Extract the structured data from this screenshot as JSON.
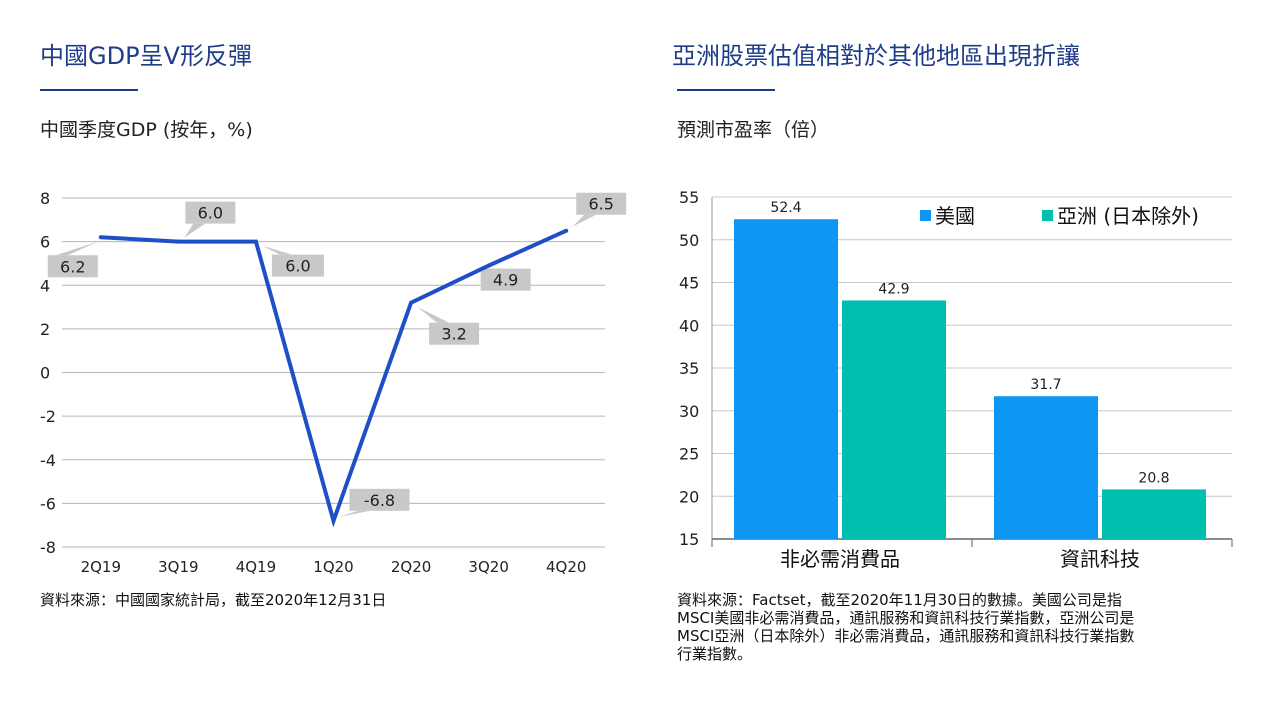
{
  "left": {
    "title": "中國GDP呈V形反彈",
    "subtitle": "中國季度GDP (按年，%)",
    "source": "資料來源：中國國家統計局，截至2020年12月31日"
  },
  "right": {
    "title": "亞洲股票估值相對於其他地區出現折讓",
    "subtitle": "預測市盈率（倍）",
    "source_lines": [
      "資料來源：Factset，截至2020年11月30日的數據。美國公司是指",
      "MSCI美國非必需消費品，通訊服務和資訊科技行業指數，亞洲公司是",
      "MSCI亞洲（日本除外）非必需消費品，通訊服務和資訊科技行業指數",
      "行業指數。"
    ]
  },
  "colors": {
    "title": "#1f3c88",
    "line": "#1f4fc7",
    "series_us": "#0d96f2",
    "series_asia": "#00bfae",
    "label_box": "#c8c8c8"
  },
  "chart_data": [
    {
      "type": "line",
      "x": [
        "2Q19",
        "3Q19",
        "4Q19",
        "1Q20",
        "2Q20",
        "3Q20",
        "4Q20"
      ],
      "values": [
        6.2,
        6.0,
        6.0,
        -6.8,
        3.2,
        4.9,
        6.5
      ],
      "data_labels": [
        "6.2",
        "6.0",
        "6.0",
        "-6.8",
        "3.2",
        "4.9",
        "6.5"
      ],
      "y_ticks": [
        "8",
        "6",
        "4",
        "2",
        "0",
        "-2",
        "-4",
        "-6",
        "-8"
      ],
      "ylim": [
        -8,
        8
      ],
      "grid": true
    },
    {
      "type": "bar",
      "categories": [
        "非必需消費品",
        "資訊科技"
      ],
      "series": [
        {
          "name": "美國",
          "values": [
            52.4,
            31.7
          ],
          "labels": [
            "52.4",
            "31.7"
          ]
        },
        {
          "name": "亞洲 (日本除外)",
          "values": [
            42.9,
            20.8
          ],
          "labels": [
            "42.9",
            "20.8"
          ]
        }
      ],
      "y_ticks": [
        "55",
        "50",
        "45",
        "40",
        "35",
        "30",
        "25",
        "20",
        "15"
      ],
      "ylim": [
        15,
        55
      ],
      "grid": true,
      "legend": "top-right"
    }
  ]
}
